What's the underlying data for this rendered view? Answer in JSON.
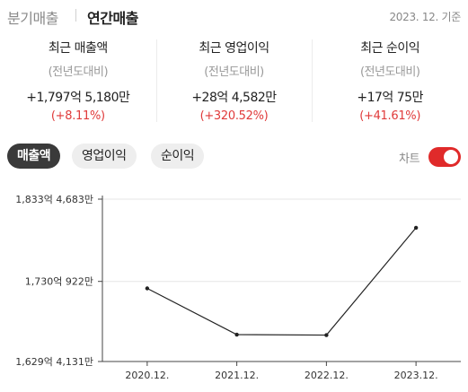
{
  "header": {
    "tabs": [
      {
        "label": "분기매출",
        "active": false
      },
      {
        "label": "연간매출",
        "active": true
      }
    ],
    "base_date": "2023. 12. 기준"
  },
  "summary": [
    {
      "label": "최근 매출액",
      "sub": "(전년도대비)",
      "value": "+1,797억 5,180만",
      "change": "(+8.11%)"
    },
    {
      "label": "최근 영업이익",
      "sub": "(전년도대비)",
      "value": "+28억 4,582만",
      "change": "(+320.52%)"
    },
    {
      "label": "최근 순이익",
      "sub": "(전년도대비)",
      "value": "+17억 75만",
      "change": "(+41.61%)"
    }
  ],
  "metric_tabs": [
    {
      "label": "매출액",
      "active": true
    },
    {
      "label": "영업이익",
      "active": false
    },
    {
      "label": "순이익",
      "active": false
    }
  ],
  "chart_toggle": {
    "label": "차트",
    "on": true
  },
  "colors": {
    "accent": "#e02a2a",
    "positive": "#e03a3a",
    "active_pill": "#3a3a3a",
    "line": "#222222"
  },
  "chart_data": {
    "type": "line",
    "categories": [
      "2020.12.",
      "2021.12.",
      "2022.12.",
      "2023.12."
    ],
    "series": [
      {
        "values": [
          1721.3,
          1663.2,
          1662.6,
          1797.5
        ]
      }
    ],
    "ylim": [
      1629.4131,
      1833.4683
    ],
    "y_ticks": [
      1629.4131,
      1730.0922,
      1833.4683
    ],
    "y_tick_labels": [
      "1,629억 4,131만",
      "1,730억 922만",
      "1,833억 4,683만"
    ],
    "grid": true
  }
}
